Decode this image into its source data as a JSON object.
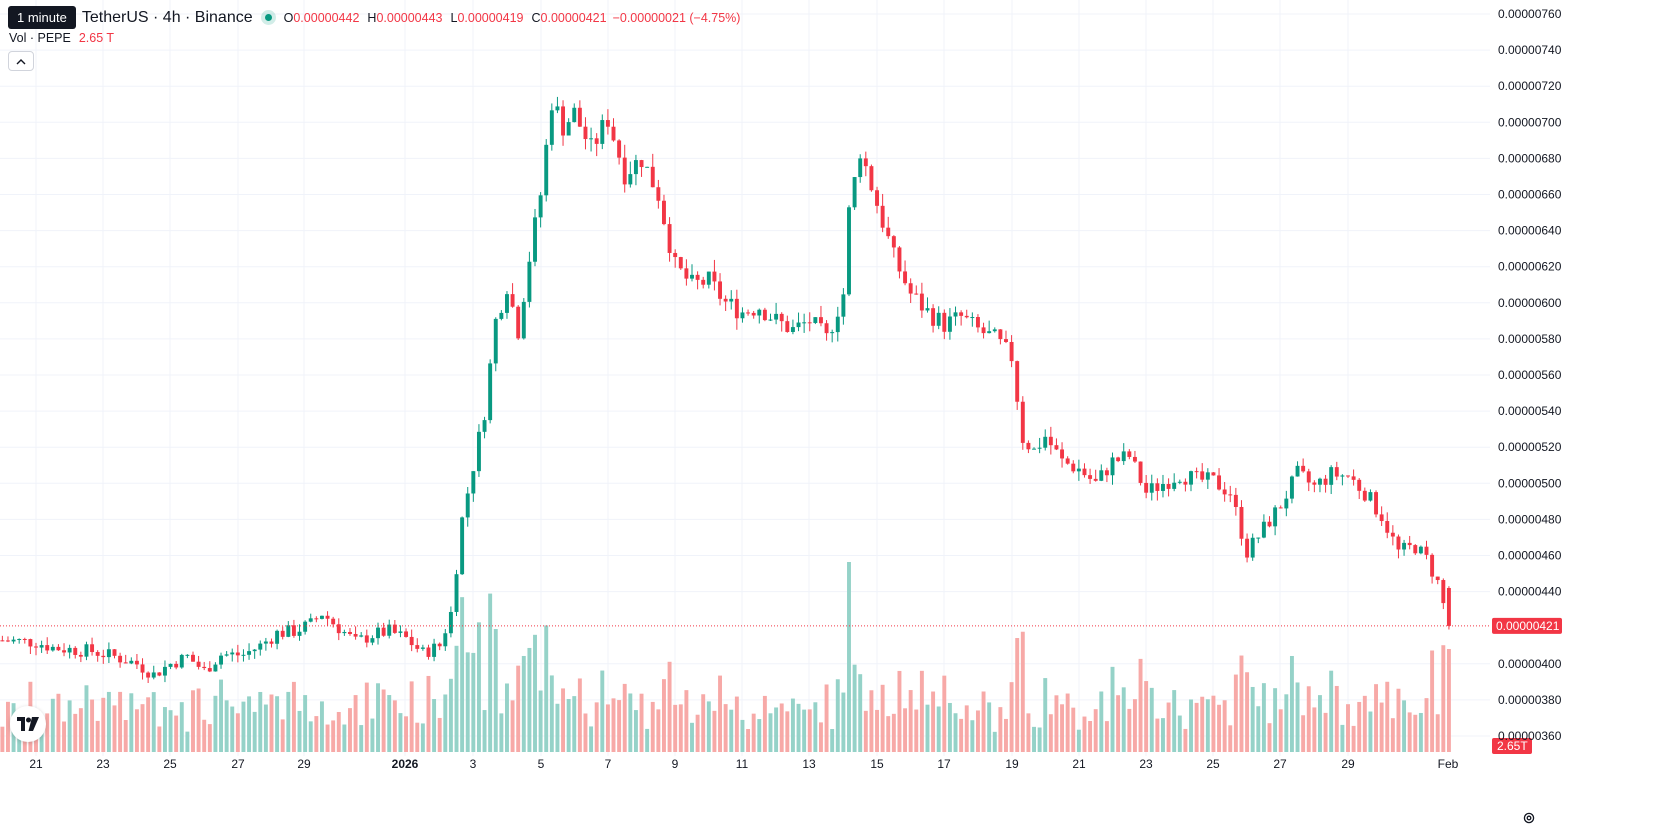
{
  "header": {
    "tooltip": "1 minute",
    "symbol_title": "TetherUS · 4h · Binance",
    "ohlc": {
      "o_label": "O",
      "o_value": "0.00000442",
      "h_label": "H",
      "h_value": "0.00000443",
      "l_label": "L",
      "l_value": "0.00000419",
      "c_label": "C",
      "c_value": "0.00000421",
      "change": "−0.00000021 (−4.75%)"
    },
    "volume": {
      "label": "Vol · PEPE",
      "value": "2.65 T"
    },
    "collapse_icon": "chevron-up-icon"
  },
  "colors": {
    "up": "#089981",
    "down": "#f23645",
    "up_volume": "#95d2c8",
    "down_volume": "#f7a9a7",
    "grid": "#f0f3fa",
    "text": "#131722"
  },
  "chart_data": {
    "type": "candlestick",
    "timeframe": "4h",
    "exchange": "Binance",
    "x_ticks": [
      "21",
      "23",
      "25",
      "27",
      "29",
      "2026",
      "3",
      "5",
      "7",
      "9",
      "11",
      "13",
      "15",
      "17",
      "19",
      "21",
      "23",
      "25",
      "27",
      "29",
      "Feb"
    ],
    "x_tick_dates": [
      "2025-12-21",
      "2025-12-23",
      "2025-12-25",
      "2025-12-27",
      "2025-12-29",
      "2026-01-01",
      "2026-01-03",
      "2026-01-05",
      "2026-01-07",
      "2026-01-09",
      "2026-01-11",
      "2026-01-13",
      "2026-01-15",
      "2026-01-17",
      "2026-01-19",
      "2026-01-21",
      "2026-01-23",
      "2026-01-25",
      "2026-01-27",
      "2026-01-29",
      "2026-02-01"
    ],
    "y_ticks": [
      "0.00000760",
      "0.00000740",
      "0.00000720",
      "0.00000700",
      "0.00000680",
      "0.00000660",
      "0.00000640",
      "0.00000620",
      "0.00000600",
      "0.00000580",
      "0.00000560",
      "0.00000540",
      "0.00000520",
      "0.00000500",
      "0.00000480",
      "0.00000460",
      "0.00000440",
      "0.00000400",
      "0.00000380",
      "0.00000360"
    ],
    "ylim": [
      3.55e-06,
      7.61e-06
    ],
    "last_price_label": "0.00000421",
    "last_price": 4.21e-06,
    "last_volume_label": "2.65T",
    "grid": true,
    "trend_path": [
      [
        "2025-12-20T00:00",
        4.13
      ],
      [
        "2025-12-21T00:00",
        4.12
      ],
      [
        "2025-12-21T12:00",
        4.09
      ],
      [
        "2025-12-22T00:00",
        4.08
      ],
      [
        "2025-12-22T16:00",
        4.07
      ],
      [
        "2025-12-23T08:00",
        4.04
      ],
      [
        "2025-12-24T00:00",
        4.0
      ],
      [
        "2025-12-24T12:00",
        3.94
      ],
      [
        "2025-12-25T00:00",
        4.0
      ],
      [
        "2025-12-25T12:00",
        4.04
      ],
      [
        "2025-12-26T00:00",
        3.96
      ],
      [
        "2025-12-26T12:00",
        4.05
      ],
      [
        "2025-12-27T04:00",
        4.05
      ],
      [
        "2025-12-27T16:00",
        4.1
      ],
      [
        "2025-12-28T04:00",
        4.17
      ],
      [
        "2025-12-28T16:00",
        4.18
      ],
      [
        "2025-12-29T04:00",
        4.22
      ],
      [
        "2025-12-29T12:00",
        4.28
      ],
      [
        "2025-12-30T00:00",
        4.2
      ],
      [
        "2025-12-30T12:00",
        4.12
      ],
      [
        "2025-12-31T00:00",
        4.16
      ],
      [
        "2025-12-31T12:00",
        4.18
      ],
      [
        "2026-01-01T00:00",
        4.14
      ],
      [
        "2026-01-01T12:00",
        4.06
      ],
      [
        "2026-01-02T00:00",
        4.1
      ],
      [
        "2026-01-02T08:00",
        4.28
      ],
      [
        "2026-01-02T16:00",
        4.8
      ],
      [
        "2026-01-03T00:00",
        5.1
      ],
      [
        "2026-01-03T08:00",
        5.4
      ],
      [
        "2026-01-03T16:00",
        5.9
      ],
      [
        "2026-01-04T00:00",
        6.1
      ],
      [
        "2026-01-04T08:00",
        5.85
      ],
      [
        "2026-01-04T16:00",
        6.25
      ],
      [
        "2026-01-05T00:00",
        6.6
      ],
      [
        "2026-01-05T08:00",
        7.12
      ],
      [
        "2026-01-05T16:00",
        6.98
      ],
      [
        "2026-01-06T00:00",
        7.05
      ],
      [
        "2026-01-06T12:00",
        6.85
      ],
      [
        "2026-01-07T00:00",
        7.02
      ],
      [
        "2026-01-07T12:00",
        6.72
      ],
      [
        "2026-01-08T00:00",
        6.8
      ],
      [
        "2026-01-08T12:00",
        6.6
      ],
      [
        "2026-01-09T00:00",
        6.2
      ],
      [
        "2026-01-09T12:00",
        6.1
      ],
      [
        "2026-01-10T00:00",
        6.12
      ],
      [
        "2026-01-10T12:00",
        6.0
      ],
      [
        "2026-01-11T00:00",
        5.95
      ],
      [
        "2026-01-11T12:00",
        5.98
      ],
      [
        "2026-01-12T00:00",
        5.9
      ],
      [
        "2026-01-12T12:00",
        5.85
      ],
      [
        "2026-01-13T00:00",
        5.9
      ],
      [
        "2026-01-13T12:00",
        5.8
      ],
      [
        "2026-01-14T00:00",
        6.05
      ],
      [
        "2026-01-14T04:00",
        6.5
      ],
      [
        "2026-01-14T12:00",
        6.85
      ],
      [
        "2026-01-15T00:00",
        6.55
      ],
      [
        "2026-01-15T12:00",
        6.25
      ],
      [
        "2026-01-16T00:00",
        6.05
      ],
      [
        "2026-01-16T12:00",
        5.95
      ],
      [
        "2026-01-17T00:00",
        5.88
      ],
      [
        "2026-01-17T12:00",
        5.92
      ],
      [
        "2026-01-18T00:00",
        5.85
      ],
      [
        "2026-01-18T12:00",
        5.8
      ],
      [
        "2026-01-19T00:00",
        5.7
      ],
      [
        "2026-01-19T08:00",
        5.25
      ],
      [
        "2026-01-19T16:00",
        5.18
      ],
      [
        "2026-01-20T00:00",
        5.26
      ],
      [
        "2026-01-20T12:00",
        5.12
      ],
      [
        "2026-01-21T00:00",
        5.08
      ],
      [
        "2026-01-21T12:00",
        5.0
      ],
      [
        "2026-01-22T00:00",
        5.12
      ],
      [
        "2026-01-22T12:00",
        5.15
      ],
      [
        "2026-01-23T00:00",
        4.95
      ],
      [
        "2026-01-23T12:00",
        5.0
      ],
      [
        "2026-01-24T00:00",
        5.05
      ],
      [
        "2026-01-24T12:00",
        5.02
      ],
      [
        "2026-01-25T00:00",
        5.01
      ],
      [
        "2026-01-25T12:00",
        4.95
      ],
      [
        "2026-01-26T00:00",
        4.62
      ],
      [
        "2026-01-26T12:00",
        4.75
      ],
      [
        "2026-01-27T00:00",
        4.88
      ],
      [
        "2026-01-27T12:00",
        5.05
      ],
      [
        "2026-01-28T00:00",
        4.98
      ],
      [
        "2026-01-28T12:00",
        5.05
      ],
      [
        "2026-01-29T00:00",
        5.04
      ],
      [
        "2026-01-29T12:00",
        4.95
      ],
      [
        "2026-01-30T00:00",
        4.82
      ],
      [
        "2026-01-30T12:00",
        4.62
      ],
      [
        "2026-01-31T00:00",
        4.65
      ],
      [
        "2026-01-31T08:00",
        4.58
      ],
      [
        "2026-01-31T16:00",
        4.45
      ],
      [
        "2026-02-01T00:00",
        4.21
      ]
    ],
    "trend_unit": "1e-6 USDT"
  }
}
